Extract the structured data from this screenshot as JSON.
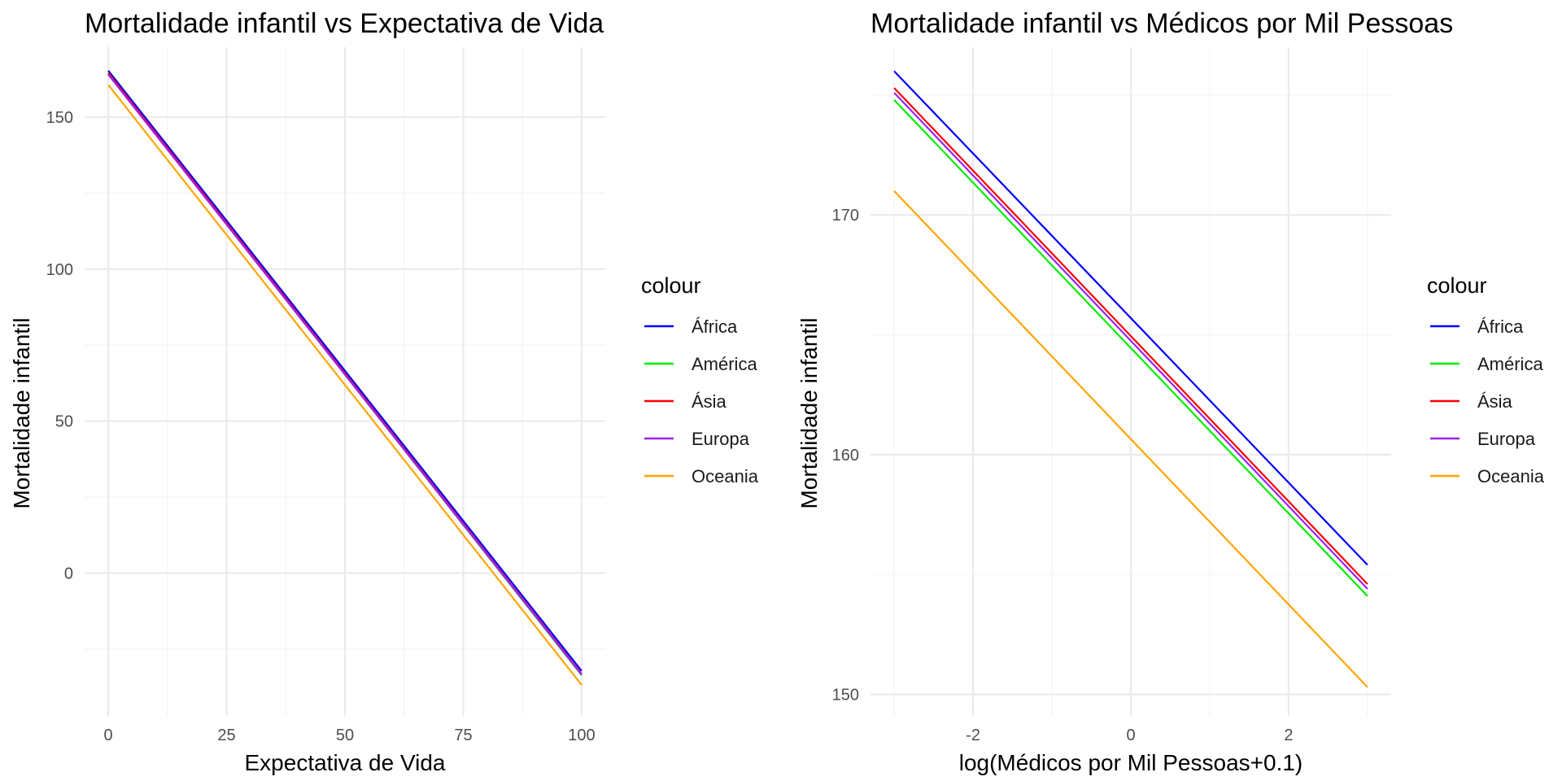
{
  "colors": {
    "África": "#0000ff",
    "América": "#00ee00",
    "Ásia": "#ff0000",
    "Europa": "#a020f0",
    "Oceania": "#ffa500"
  },
  "chart_data": [
    {
      "type": "line",
      "title": "Mortalidade infantil vs Expectativa de Vida",
      "xlabel": "Expectativa de Vida",
      "ylabel": "Mortalidade infantil",
      "xlim": [
        -5,
        105
      ],
      "ylim": [
        -47,
        173
      ],
      "xticks": [
        0,
        25,
        50,
        75,
        100
      ],
      "yticks": [
        0,
        50,
        100,
        150
      ],
      "grid": true,
      "legend": {
        "title": "colour",
        "position": "right",
        "entries": [
          "África",
          "América",
          "Ásia",
          "Europa",
          "Oceania"
        ]
      },
      "series": [
        {
          "name": "África",
          "x": [
            0,
            100
          ],
          "y": [
            165.3,
            -32.2
          ]
        },
        {
          "name": "América",
          "x": [
            0,
            100
          ],
          "y": [
            164.2,
            -33.6
          ]
        },
        {
          "name": "Ásia",
          "x": [
            0,
            100
          ],
          "y": [
            164.5,
            -33.2
          ]
        },
        {
          "name": "Europa",
          "x": [
            0,
            100
          ],
          "y": [
            164.0,
            -33.4
          ]
        },
        {
          "name": "Oceania",
          "x": [
            0,
            100
          ],
          "y": [
            160.6,
            -36.8
          ]
        }
      ]
    },
    {
      "type": "line",
      "title": "Mortalidade infantil vs Médicos por Mil Pessoas",
      "xlabel": "log(Médicos por Mil Pessoas+0.1)",
      "ylabel": "Mortalidade infantil",
      "xlim": [
        -3.3,
        3.3
      ],
      "ylim": [
        149.1,
        177.0
      ],
      "xticks": [
        -2,
        0,
        2
      ],
      "yticks": [
        150,
        160,
        170
      ],
      "grid": true,
      "legend": {
        "title": "colour",
        "position": "right",
        "entries": [
          "África",
          "América",
          "Ásia",
          "Europa",
          "Oceania"
        ]
      },
      "series": [
        {
          "name": "África",
          "x": [
            -3,
            3
          ],
          "y": [
            176.0,
            155.4
          ]
        },
        {
          "name": "América",
          "x": [
            -3,
            3
          ],
          "y": [
            174.8,
            154.1
          ]
        },
        {
          "name": "Ásia",
          "x": [
            -3,
            3
          ],
          "y": [
            175.3,
            154.6
          ]
        },
        {
          "name": "Europa",
          "x": [
            -3,
            3
          ],
          "y": [
            175.1,
            154.4
          ]
        },
        {
          "name": "Oceania",
          "x": [
            -3,
            3
          ],
          "y": [
            171.0,
            150.3
          ]
        }
      ]
    }
  ]
}
